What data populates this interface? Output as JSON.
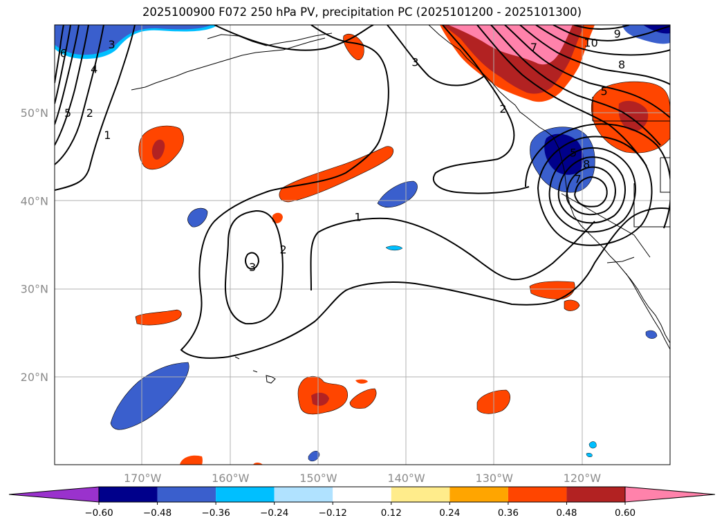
{
  "title": "2025100900 F072 250 hPa PV, precipitation PC (2025101200 - 2025101300)",
  "map": {
    "lon_range": [
      -180,
      -110
    ],
    "lat_range": [
      10,
      60
    ],
    "lon_ticks": [
      {
        "value": -170,
        "label": "170°W"
      },
      {
        "value": -160,
        "label": "160°W"
      },
      {
        "value": -150,
        "label": "150°W"
      },
      {
        "value": -140,
        "label": "140°W"
      },
      {
        "value": -130,
        "label": "130°W"
      },
      {
        "value": -120,
        "label": "120°W"
      }
    ],
    "lat_ticks": [
      {
        "value": 50,
        "label": "50°N"
      },
      {
        "value": 40,
        "label": "40°N"
      },
      {
        "value": 30,
        "label": "30°N"
      },
      {
        "value": 20,
        "label": "20°N"
      }
    ],
    "gridlines": true
  },
  "contour_labels": [
    {
      "text": "6",
      "lon": -179.0,
      "lat": 56.8
    },
    {
      "text": "3",
      "lon": -173.5,
      "lat": 57.8
    },
    {
      "text": "4",
      "lon": -175.5,
      "lat": 55.0
    },
    {
      "text": "5",
      "lon": -178.5,
      "lat": 50.0
    },
    {
      "text": "2",
      "lon": -176.0,
      "lat": 50.0
    },
    {
      "text": "1",
      "lon": -174.0,
      "lat": 47.5
    },
    {
      "text": "3",
      "lon": -139.0,
      "lat": 55.8
    },
    {
      "text": "2",
      "lon": -129.0,
      "lat": 50.5
    },
    {
      "text": "7",
      "lon": -125.5,
      "lat": 57.5
    },
    {
      "text": "10",
      "lon": -119.0,
      "lat": 58.0
    },
    {
      "text": "9",
      "lon": -116.0,
      "lat": 59.0
    },
    {
      "text": "8",
      "lon": -115.5,
      "lat": 55.5
    },
    {
      "text": "5",
      "lon": -117.5,
      "lat": 52.5
    },
    {
      "text": "5",
      "lon": -121.0,
      "lat": 45.5
    },
    {
      "text": "7",
      "lon": -120.5,
      "lat": 42.5
    },
    {
      "text": "8",
      "lon": -119.5,
      "lat": 44.2
    },
    {
      "text": "1",
      "lon": -145.5,
      "lat": 38.2
    },
    {
      "text": "2",
      "lon": -154.0,
      "lat": 34.5
    },
    {
      "text": "3",
      "lon": -157.5,
      "lat": 32.5
    }
  ],
  "colorbar": {
    "levels": [
      -0.6,
      -0.48,
      -0.36,
      -0.24,
      -0.12,
      0.12,
      0.24,
      0.36,
      0.48,
      0.6
    ],
    "tick_labels": [
      "−0.60",
      "−0.48",
      "−0.36",
      "−0.24",
      "−0.12",
      "0.12",
      "0.24",
      "0.36",
      "0.48",
      "0.60"
    ],
    "colors": [
      "#9a32cd",
      "#00008b",
      "#3a5fcd",
      "#00bfff",
      "#b0e2ff",
      "#ffffff",
      "#ffec8b",
      "#ffa500",
      "#ff4500",
      "#b22222",
      "#ff82ab"
    ],
    "extend": "both"
  }
}
